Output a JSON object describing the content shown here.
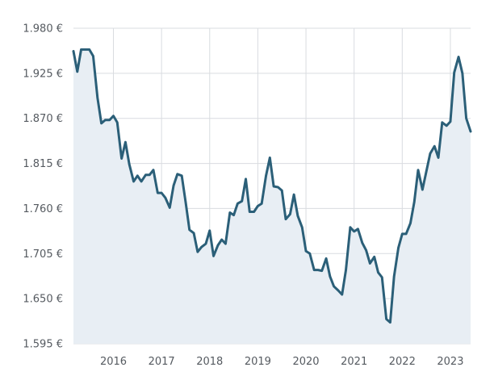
{
  "chart_data": {
    "type": "area",
    "title": "",
    "xlabel": "",
    "ylabel": "",
    "ylim": [
      1595,
      1980
    ],
    "xlim": [
      2015.17,
      2023.42
    ],
    "grid": {
      "x": true,
      "y": true
    },
    "colors": {
      "line": "#2b5f78",
      "fill": "#e8eef4",
      "grid": "#d9dce0",
      "text": "#555a60"
    },
    "y_ticks": [
      {
        "value": 1980,
        "label": "1.980 €"
      },
      {
        "value": 1925,
        "label": "1.925 €"
      },
      {
        "value": 1870,
        "label": "1.870 €"
      },
      {
        "value": 1815,
        "label": "1.815 €"
      },
      {
        "value": 1760,
        "label": "1.760 €"
      },
      {
        "value": 1705,
        "label": "1.705 €"
      },
      {
        "value": 1650,
        "label": "1.650 €"
      },
      {
        "value": 1595,
        "label": "1.595 €"
      }
    ],
    "x_ticks": [
      {
        "value": 2016,
        "label": "2016"
      },
      {
        "value": 2017,
        "label": "2017"
      },
      {
        "value": 2018,
        "label": "2018"
      },
      {
        "value": 2019,
        "label": "2019"
      },
      {
        "value": 2020,
        "label": "2020"
      },
      {
        "value": 2021,
        "label": "2021"
      },
      {
        "value": 2022,
        "label": "2022"
      },
      {
        "value": 2023,
        "label": "2023"
      }
    ],
    "series": [
      {
        "x": [
          2015.17,
          2015.25,
          2015.33,
          2015.42,
          2015.5,
          2015.58,
          2015.67,
          2015.75,
          2015.83,
          2015.92,
          2016.0,
          2016.08,
          2016.17,
          2016.25,
          2016.33,
          2016.42,
          2016.5,
          2016.58,
          2016.67,
          2016.75,
          2016.83,
          2016.92,
          2017.0,
          2017.08,
          2017.17,
          2017.25,
          2017.33,
          2017.42,
          2017.5,
          2017.58,
          2017.67,
          2017.75,
          2017.83,
          2017.92,
          2018.0,
          2018.08,
          2018.17,
          2018.25,
          2018.33,
          2018.42,
          2018.5,
          2018.58,
          2018.67,
          2018.75,
          2018.83,
          2018.92,
          2019.0,
          2019.08,
          2019.17,
          2019.25,
          2019.33,
          2019.42,
          2019.5,
          2019.58,
          2019.67,
          2019.75,
          2019.83,
          2019.92,
          2020.0,
          2020.08,
          2020.17,
          2020.25,
          2020.33,
          2020.42,
          2020.5,
          2020.58,
          2020.67,
          2020.75,
          2020.83,
          2020.92,
          2021.0,
          2021.08,
          2021.17,
          2021.25,
          2021.33,
          2021.42,
          2021.5,
          2021.58,
          2021.67,
          2021.75,
          2021.83,
          2021.92,
          2022.0,
          2022.08,
          2022.17,
          2022.25,
          2022.33,
          2022.42,
          2022.5,
          2022.58,
          2022.67,
          2022.75,
          2022.83,
          2022.92,
          2023.0,
          2023.08,
          2023.17,
          2023.25,
          2023.33,
          2023.42
        ],
        "y": [
          1952,
          1927,
          1954,
          1954,
          1954,
          1946,
          1895,
          1864,
          1868,
          1868,
          1873,
          1865,
          1821,
          1841,
          1814,
          1793,
          1800,
          1793,
          1801,
          1801,
          1807,
          1779,
          1779,
          1773,
          1761,
          1788,
          1802,
          1800,
          1768,
          1734,
          1730,
          1707,
          1713,
          1717,
          1733,
          1702,
          1715,
          1722,
          1717,
          1755,
          1752,
          1766,
          1769,
          1796,
          1756,
          1756,
          1763,
          1766,
          1800,
          1822,
          1787,
          1786,
          1782,
          1747,
          1753,
          1777,
          1751,
          1737,
          1708,
          1705,
          1685,
          1685,
          1684,
          1699,
          1677,
          1665,
          1660,
          1655,
          1685,
          1737,
          1732,
          1735,
          1718,
          1709,
          1693,
          1701,
          1682,
          1676,
          1625,
          1621,
          1677,
          1712,
          1729,
          1729,
          1742,
          1768,
          1807,
          1783,
          1805,
          1827,
          1836,
          1822,
          1865,
          1861,
          1866,
          1926,
          1945,
          1925,
          1870,
          1854
        ]
      }
    ]
  }
}
